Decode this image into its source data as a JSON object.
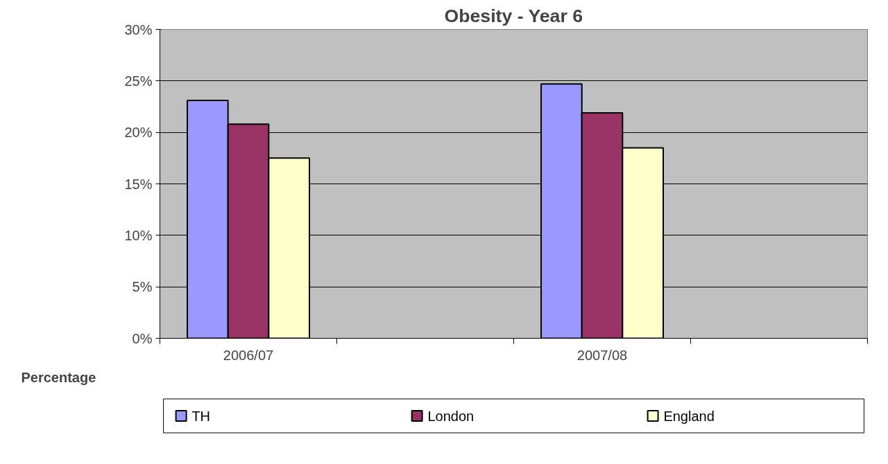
{
  "chart_data": {
    "type": "bar",
    "title": "Obesity - Year 6",
    "xlabel": "Percentage",
    "categories": [
      "2006/07",
      null,
      "2007/08",
      null
    ],
    "series": [
      {
        "name": "TH",
        "color": "#9999ff",
        "values": [
          23.1,
          null,
          24.7,
          null
        ]
      },
      {
        "name": "London",
        "color": "#993366",
        "values": [
          20.8,
          null,
          21.9,
          null
        ]
      },
      {
        "name": "England",
        "color": "#ffffcc",
        "values": [
          17.5,
          null,
          18.5,
          null
        ]
      }
    ],
    "ylim": [
      0,
      30
    ],
    "yticks": [
      {
        "value": 0,
        "label": "0%"
      },
      {
        "value": 5,
        "label": "5%"
      },
      {
        "value": 10,
        "label": "10%"
      },
      {
        "value": 15,
        "label": "15%"
      },
      {
        "value": 20,
        "label": "20%"
      },
      {
        "value": 25,
        "label": "25%"
      },
      {
        "value": 30,
        "label": "30%"
      }
    ],
    "grid": "y",
    "legend": "bottom"
  }
}
